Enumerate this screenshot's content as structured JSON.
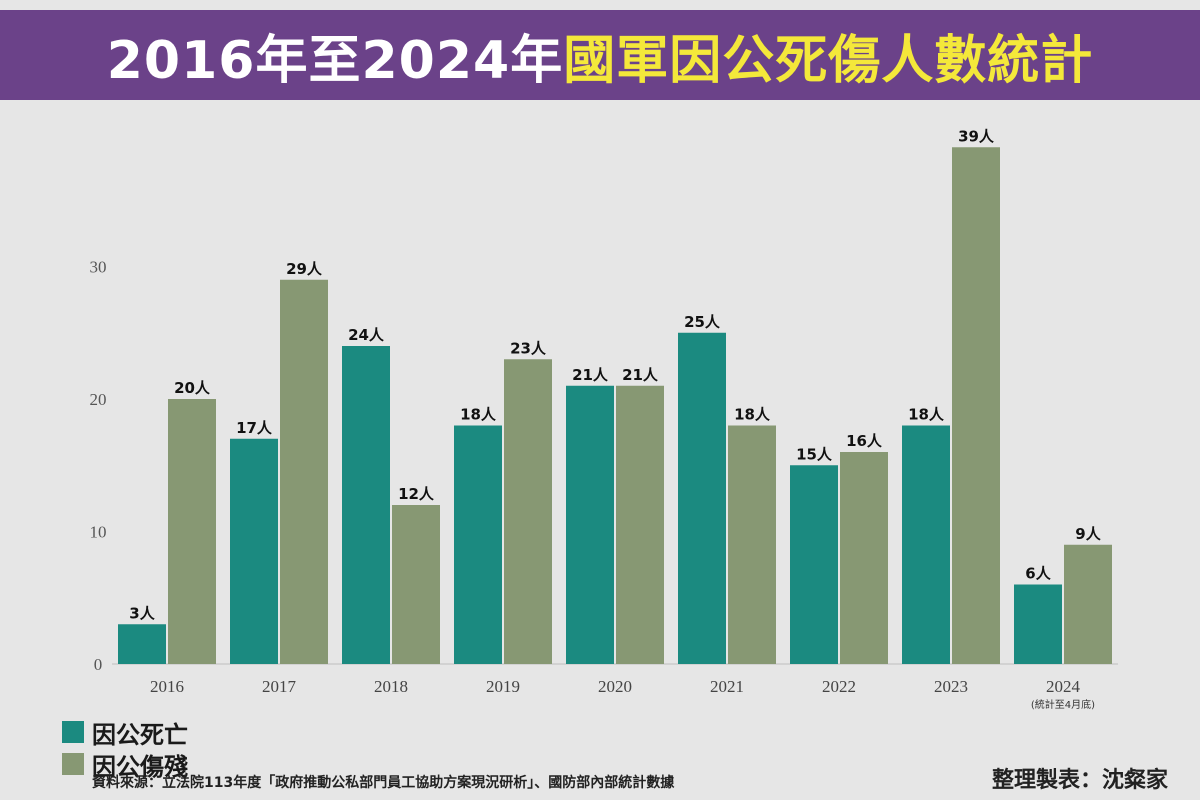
{
  "header": {
    "title_part1": "2016年至2024年",
    "title_part2": "國軍因公死傷人數統計"
  },
  "chart_data": {
    "type": "bar",
    "title": "2016年至2024年國軍因公死傷人數統計",
    "categories": [
      "2016",
      "2017",
      "2018",
      "2019",
      "2020",
      "2021",
      "2022",
      "2023",
      "2024"
    ],
    "category_notes": [
      "",
      "",
      "",
      "",
      "",
      "",
      "",
      "",
      "(統計至4月底)"
    ],
    "series": [
      {
        "name": "因公死亡",
        "color": "#1b8a80",
        "values": [
          3,
          17,
          24,
          18,
          21,
          25,
          15,
          18,
          6
        ]
      },
      {
        "name": "因公傷殘",
        "color": "#879873",
        "values": [
          20,
          29,
          12,
          23,
          21,
          18,
          16,
          39,
          9
        ]
      }
    ],
    "value_suffix": "人",
    "yticks": [
      0,
      10,
      20,
      30
    ],
    "ylim": [
      0,
      39
    ],
    "legend_position": "bottom-left",
    "grid": false
  },
  "footer": {
    "source": "資料來源：立法院113年度「政府推動公私部門員工協助方案現況研析」、國防部內部統計數據",
    "credit": "整理製表：沈粲家"
  }
}
